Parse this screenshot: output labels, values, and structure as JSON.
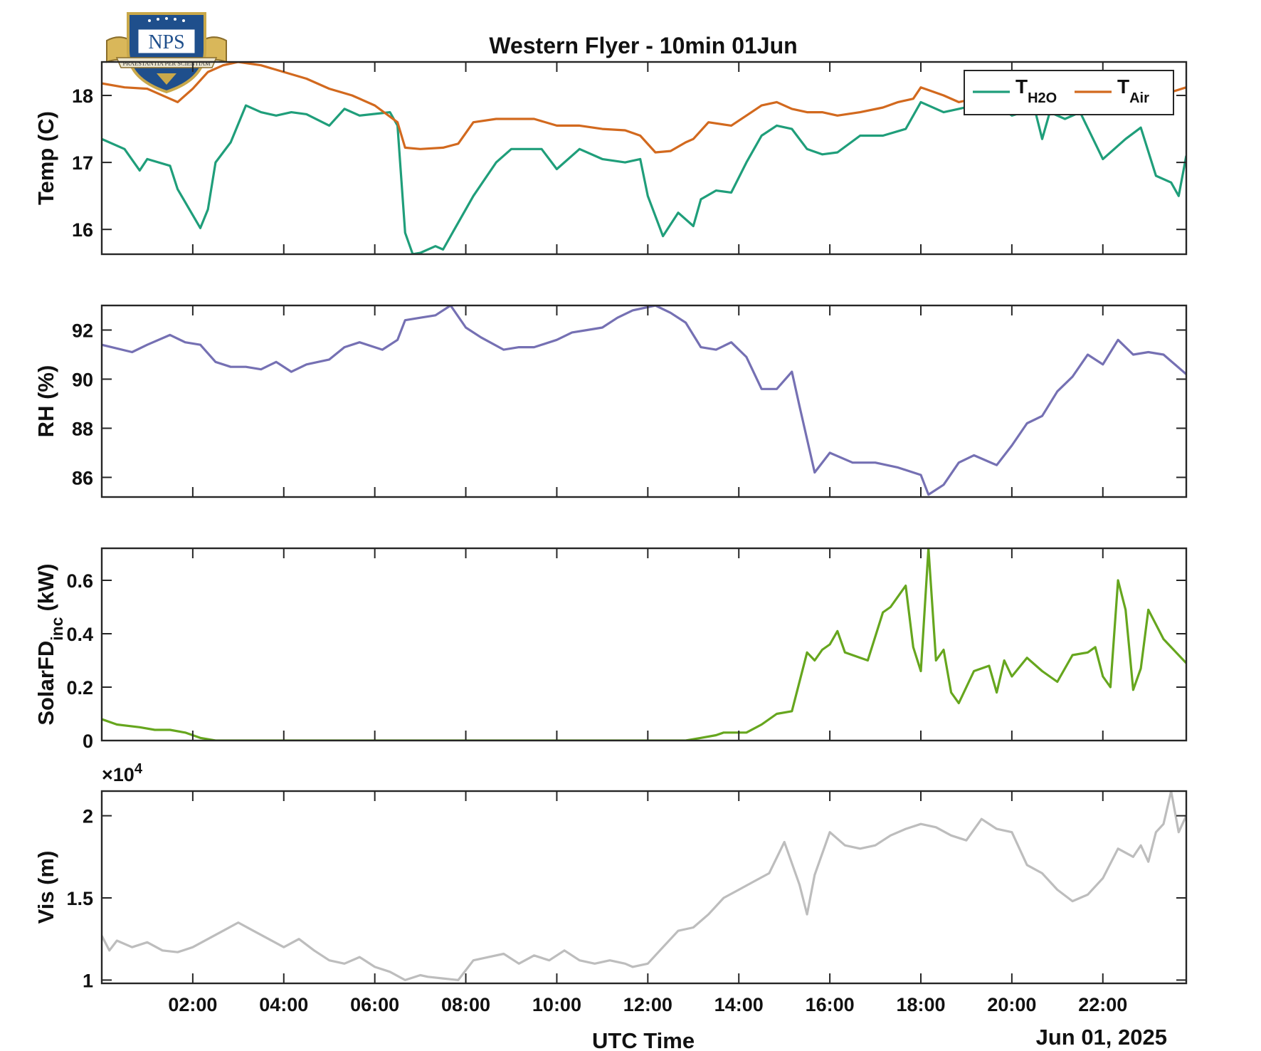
{
  "title": "Western Flyer - 10min 01Jun",
  "xlabel": "UTC Time",
  "date_label": "Jun 01, 2025",
  "logo": {
    "text": "NPS",
    "motto": "PRAESTANTIA PER SCIENTIAM"
  },
  "x_ticks": [
    "02:00",
    "04:00",
    "06:00",
    "08:00",
    "10:00",
    "12:00",
    "14:00",
    "16:00",
    "18:00",
    "20:00",
    "22:00"
  ],
  "colors": {
    "h2o": "#1f9e7a",
    "air": "#d2691e",
    "rh": "#7570b3",
    "solar": "#66a61e",
    "vis": "#bdbdbd"
  },
  "chart_data": [
    {
      "type": "line",
      "title": "Western Flyer - 10min 01Jun",
      "ylabel": "Temp (C)",
      "xlim": [
        "00:00",
        "23:50"
      ],
      "ylim": [
        15.63,
        18.5
      ],
      "yticks": [
        16,
        17,
        18
      ],
      "legend": "top-right",
      "series": [
        {
          "name_main": "T",
          "name_sub": "H2O",
          "color": "#1f9e7a",
          "x": [
            "00:00",
            "00:30",
            "00:50",
            "01:00",
            "01:30",
            "01:40",
            "02:10",
            "02:20",
            "02:30",
            "02:50",
            "03:10",
            "03:30",
            "03:50",
            "04:10",
            "04:30",
            "05:00",
            "05:20",
            "05:40",
            "06:20",
            "06:30",
            "06:40",
            "06:50",
            "07:00",
            "07:20",
            "07:30",
            "07:40",
            "08:10",
            "08:40",
            "09:00",
            "09:40",
            "10:00",
            "10:30",
            "11:00",
            "11:30",
            "11:50",
            "12:00",
            "12:20",
            "12:40",
            "13:00",
            "13:10",
            "13:30",
            "13:50",
            "14:10",
            "14:30",
            "14:50",
            "15:10",
            "15:30",
            "15:50",
            "16:10",
            "16:40",
            "17:10",
            "17:40",
            "18:00",
            "18:30",
            "18:50",
            "19:10",
            "19:40",
            "20:00",
            "20:30",
            "20:40",
            "20:50",
            "21:10",
            "21:30",
            "22:00",
            "22:30",
            "22:50",
            "23:10",
            "23:30",
            "23:40",
            "23:50"
          ],
          "y": [
            17.35,
            17.2,
            16.88,
            17.05,
            16.95,
            16.6,
            16.02,
            16.3,
            17.0,
            17.3,
            17.85,
            17.75,
            17.7,
            17.75,
            17.72,
            17.55,
            17.8,
            17.7,
            17.75,
            17.55,
            15.95,
            15.63,
            15.65,
            15.75,
            15.7,
            15.9,
            16.5,
            17.0,
            17.2,
            17.2,
            16.9,
            17.2,
            17.05,
            17.0,
            17.05,
            16.5,
            15.9,
            16.25,
            16.05,
            16.45,
            16.58,
            16.55,
            17.0,
            17.4,
            17.55,
            17.5,
            17.2,
            17.12,
            17.15,
            17.4,
            17.4,
            17.5,
            17.9,
            17.75,
            17.8,
            17.85,
            17.85,
            17.7,
            17.8,
            17.35,
            17.75,
            17.65,
            17.75,
            17.05,
            17.35,
            17.52,
            16.8,
            16.7,
            16.5,
            17.1
          ]
        },
        {
          "name_main": "T",
          "name_sub": "Air",
          "color": "#d2691e",
          "x": [
            "00:00",
            "00:30",
            "01:00",
            "01:30",
            "01:40",
            "02:00",
            "02:20",
            "02:40",
            "03:00",
            "03:30",
            "04:00",
            "04:30",
            "05:00",
            "05:30",
            "06:00",
            "06:30",
            "06:40",
            "07:00",
            "07:30",
            "07:50",
            "08:10",
            "08:40",
            "09:00",
            "09:30",
            "10:00",
            "10:30",
            "11:00",
            "11:30",
            "11:50",
            "12:10",
            "12:30",
            "12:50",
            "13:00",
            "13:20",
            "13:50",
            "14:10",
            "14:30",
            "14:50",
            "15:10",
            "15:30",
            "15:50",
            "16:10",
            "16:40",
            "17:10",
            "17:30",
            "17:50",
            "18:00",
            "18:30",
            "18:50",
            "19:10",
            "19:40",
            "20:00",
            "20:30",
            "21:00",
            "21:30",
            "22:00",
            "22:30",
            "22:50",
            "23:10",
            "23:30",
            "23:50"
          ],
          "y": [
            18.18,
            18.12,
            18.1,
            17.95,
            17.9,
            18.1,
            18.35,
            18.45,
            18.5,
            18.45,
            18.35,
            18.25,
            18.1,
            18.0,
            17.85,
            17.6,
            17.22,
            17.2,
            17.22,
            17.28,
            17.6,
            17.65,
            17.65,
            17.65,
            17.55,
            17.55,
            17.5,
            17.48,
            17.4,
            17.15,
            17.17,
            17.3,
            17.35,
            17.6,
            17.55,
            17.7,
            17.85,
            17.9,
            17.8,
            17.75,
            17.75,
            17.7,
            17.75,
            17.82,
            17.9,
            17.95,
            18.12,
            18.0,
            17.9,
            17.95,
            18.0,
            18.0,
            18.02,
            18.05,
            18.08,
            18.1,
            18.05,
            18.0,
            17.98,
            18.05,
            18.12
          ]
        }
      ]
    },
    {
      "type": "line",
      "ylabel": "RH (%)",
      "xlim": [
        "00:00",
        "23:50"
      ],
      "ylim": [
        85.2,
        93.0
      ],
      "yticks": [
        86,
        88,
        90,
        92
      ],
      "series": [
        {
          "color": "#7570b3",
          "x": [
            "00:00",
            "00:40",
            "01:00",
            "01:30",
            "01:50",
            "02:10",
            "02:30",
            "02:50",
            "03:10",
            "03:30",
            "03:50",
            "04:10",
            "04:30",
            "05:00",
            "05:20",
            "05:40",
            "06:10",
            "06:30",
            "06:40",
            "07:00",
            "07:20",
            "07:40",
            "08:00",
            "08:20",
            "08:50",
            "09:10",
            "09:30",
            "10:00",
            "10:20",
            "10:40",
            "11:00",
            "11:20",
            "11:40",
            "12:10",
            "12:30",
            "12:50",
            "13:10",
            "13:30",
            "13:50",
            "14:10",
            "14:30",
            "14:50",
            "15:10",
            "15:20",
            "15:40",
            "16:00",
            "16:30",
            "17:00",
            "17:30",
            "18:00",
            "18:10",
            "18:30",
            "18:50",
            "19:10",
            "19:40",
            "20:00",
            "20:20",
            "20:40",
            "21:00",
            "21:20",
            "21:40",
            "22:00",
            "22:20",
            "22:40",
            "23:00",
            "23:20",
            "23:50"
          ],
          "y": [
            91.4,
            91.1,
            91.4,
            91.8,
            91.5,
            91.4,
            90.7,
            90.5,
            90.5,
            90.4,
            90.7,
            90.3,
            90.6,
            90.8,
            91.3,
            91.5,
            91.2,
            91.6,
            92.4,
            92.5,
            92.6,
            93.0,
            92.1,
            91.7,
            91.2,
            91.3,
            91.3,
            91.6,
            91.9,
            92.0,
            92.1,
            92.5,
            92.8,
            93.0,
            92.7,
            92.3,
            91.3,
            91.2,
            91.5,
            90.9,
            89.6,
            89.6,
            90.3,
            88.9,
            86.2,
            87.0,
            86.6,
            86.6,
            86.4,
            86.1,
            85.3,
            85.7,
            86.6,
            86.9,
            86.5,
            87.3,
            88.2,
            88.5,
            89.5,
            90.1,
            91.0,
            90.6,
            91.6,
            91.0,
            91.1,
            91.0,
            90.2
          ]
        }
      ]
    },
    {
      "type": "line",
      "ylabel_main": "SolarFD",
      "ylabel_sub": "inc",
      "ylabel_unit": "(kW)",
      "xlim": [
        "00:00",
        "23:50"
      ],
      "ylim": [
        0,
        0.72
      ],
      "yticks": [
        0,
        0.2,
        0.4,
        0.6
      ],
      "ytick_labels": [
        "0",
        "0.2",
        "0.4",
        "0.6"
      ],
      "series": [
        {
          "color": "#66a61e",
          "x": [
            "00:00",
            "00:20",
            "00:50",
            "01:10",
            "01:30",
            "01:50",
            "02:10",
            "02:30",
            "12:50",
            "13:10",
            "13:30",
            "13:40",
            "14:10",
            "14:30",
            "14:50",
            "15:10",
            "15:30",
            "15:40",
            "15:50",
            "16:00",
            "16:10",
            "16:20",
            "16:40",
            "16:50",
            "17:10",
            "17:20",
            "17:40",
            "17:50",
            "18:00",
            "18:10",
            "18:20",
            "18:30",
            "18:40",
            "18:50",
            "19:10",
            "19:30",
            "19:40",
            "19:50",
            "20:00",
            "20:20",
            "20:40",
            "21:00",
            "21:20",
            "21:40",
            "21:50",
            "22:00",
            "22:10",
            "22:20",
            "22:30",
            "22:40",
            "22:50",
            "23:00",
            "23:20",
            "23:50"
          ],
          "y": [
            0.08,
            0.06,
            0.05,
            0.04,
            0.04,
            0.03,
            0.01,
            0.0,
            0.0,
            0.01,
            0.02,
            0.03,
            0.03,
            0.06,
            0.1,
            0.11,
            0.33,
            0.3,
            0.34,
            0.36,
            0.41,
            0.33,
            0.31,
            0.3,
            0.48,
            0.5,
            0.58,
            0.35,
            0.26,
            0.72,
            0.3,
            0.34,
            0.18,
            0.14,
            0.26,
            0.28,
            0.18,
            0.3,
            0.24,
            0.31,
            0.26,
            0.22,
            0.32,
            0.33,
            0.35,
            0.24,
            0.2,
            0.6,
            0.49,
            0.19,
            0.27,
            0.49,
            0.38,
            0.29
          ]
        }
      ]
    },
    {
      "type": "line",
      "ylabel": "Vis (m)",
      "exponent_label": "×10⁴",
      "exponent_base": "×10",
      "exponent_power": "4",
      "xlim": [
        "00:00",
        "23:50"
      ],
      "ylim": [
        0.98,
        2.15
      ],
      "yticks": [
        1,
        1.5,
        2
      ],
      "ytick_labels": [
        "1",
        "1.5",
        "2"
      ],
      "series": [
        {
          "color": "#bdbdbd",
          "x": [
            "00:00",
            "00:10",
            "00:20",
            "00:40",
            "01:00",
            "01:20",
            "01:40",
            "02:00",
            "02:20",
            "02:40",
            "03:00",
            "03:20",
            "03:40",
            "04:00",
            "04:20",
            "04:40",
            "05:00",
            "05:20",
            "05:40",
            "06:00",
            "06:20",
            "06:40",
            "07:00",
            "07:10",
            "07:30",
            "07:50",
            "08:10",
            "08:30",
            "08:50",
            "09:10",
            "09:30",
            "09:50",
            "10:10",
            "10:30",
            "10:50",
            "11:10",
            "11:30",
            "11:40",
            "12:00",
            "12:20",
            "12:40",
            "13:00",
            "13:20",
            "13:40",
            "14:00",
            "14:20",
            "14:40",
            "15:00",
            "15:20",
            "15:30",
            "15:40",
            "16:00",
            "16:20",
            "16:40",
            "17:00",
            "17:20",
            "17:40",
            "18:00",
            "18:20",
            "18:40",
            "19:00",
            "19:20",
            "19:40",
            "20:00",
            "20:20",
            "20:40",
            "21:00",
            "21:20",
            "21:40",
            "22:00",
            "22:20",
            "22:40",
            "22:50",
            "23:00",
            "23:10",
            "23:20",
            "23:30",
            "23:40",
            "23:50"
          ],
          "y": [
            1.27,
            1.18,
            1.24,
            1.2,
            1.23,
            1.18,
            1.17,
            1.2,
            1.25,
            1.3,
            1.35,
            1.3,
            1.25,
            1.2,
            1.25,
            1.18,
            1.12,
            1.1,
            1.14,
            1.08,
            1.05,
            1.0,
            1.03,
            1.02,
            1.01,
            1.0,
            1.12,
            1.14,
            1.16,
            1.1,
            1.15,
            1.12,
            1.18,
            1.12,
            1.1,
            1.12,
            1.1,
            1.08,
            1.1,
            1.2,
            1.3,
            1.32,
            1.4,
            1.5,
            1.55,
            1.6,
            1.65,
            1.84,
            1.58,
            1.4,
            1.64,
            1.9,
            1.82,
            1.8,
            1.82,
            1.88,
            1.92,
            1.95,
            1.93,
            1.88,
            1.85,
            1.98,
            1.92,
            1.9,
            1.7,
            1.65,
            1.55,
            1.48,
            1.52,
            1.62,
            1.8,
            1.75,
            1.82,
            1.72,
            1.9,
            1.95,
            2.15,
            1.9,
            2.0
          ]
        }
      ]
    }
  ]
}
